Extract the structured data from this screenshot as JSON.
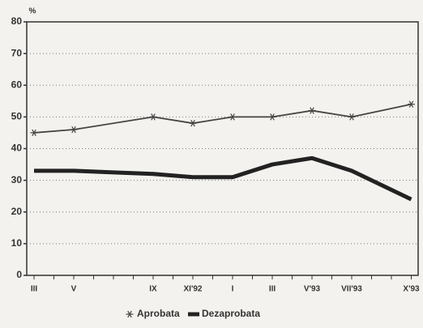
{
  "chart_data": {
    "type": "line",
    "y_label": "%",
    "categories": [
      "III",
      "V",
      "IX",
      "XI'92",
      "I",
      "III",
      "V'93",
      "VII'93",
      "X'93"
    ],
    "series": [
      {
        "name": "Aprobata",
        "color": "#444444",
        "marker": "asterisk",
        "values": [
          45,
          46,
          50,
          48,
          50,
          50,
          52,
          50,
          54
        ]
      },
      {
        "name": "Dezaprobata",
        "color": "#222222",
        "values": [
          33,
          33,
          32,
          31,
          31,
          35,
          37,
          33,
          24
        ]
      }
    ],
    "ylim": [
      0,
      80
    ],
    "yticks": [
      0,
      10,
      20,
      30,
      40,
      50,
      60,
      70,
      80
    ],
    "grid": true
  }
}
